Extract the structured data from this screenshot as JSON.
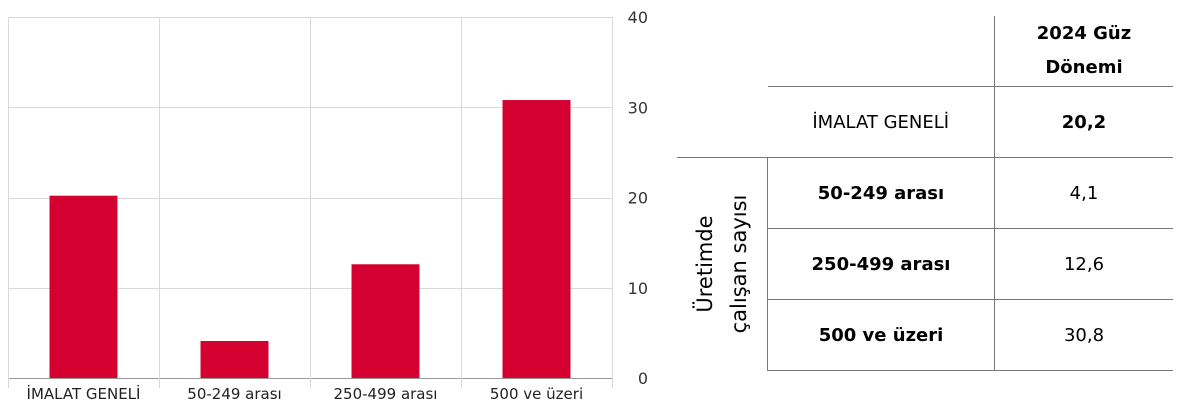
{
  "chart_data": {
    "type": "bar",
    "categories": [
      "İMALAT GENELİ",
      "50-249 arası",
      "250-499 arası",
      "500 ve üzeri"
    ],
    "values": [
      20.2,
      4.1,
      12.6,
      30.8
    ],
    "ylim": [
      0,
      40
    ],
    "yticks": [
      "0",
      "10",
      "20",
      "30",
      "40"
    ],
    "grid": true,
    "bar_color": "#d4002f",
    "axis_position": "right"
  },
  "table": {
    "header_line1": "2024 Güz",
    "header_line2": "Dönemi",
    "side_line1": "Üretimde",
    "side_line2": "çalışan sayısı",
    "rows": [
      {
        "label": "İMALAT GENELİ",
        "value": "20,2"
      },
      {
        "label": "50-249 arası",
        "value": "4,1"
      },
      {
        "label": "250-499 arası",
        "value": "12,6"
      },
      {
        "label": "500 ve üzeri",
        "value": "30,8"
      }
    ]
  }
}
